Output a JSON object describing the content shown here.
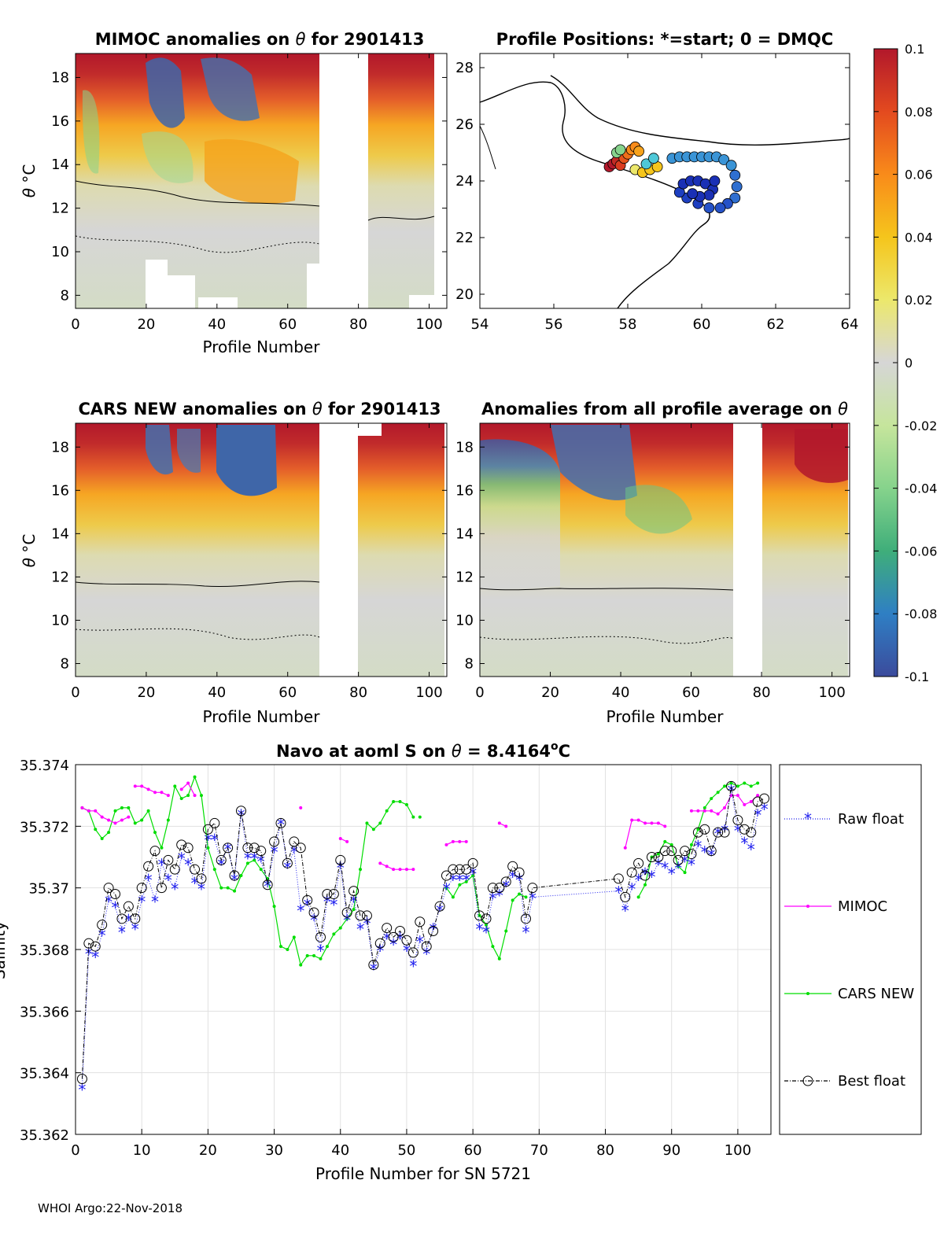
{
  "panels": {
    "mimoc": {
      "title_prefix": "MIMOC anomalies on ",
      "title_symbol": "θ",
      "title_suffix": "  for 2901413",
      "xlabel": "Profile Number",
      "ylabel_symbol": "θ",
      "ylabel_unit": " °C",
      "xticks": [
        "0",
        "20",
        "40",
        "60",
        "80",
        "100"
      ],
      "yticks": [
        "8",
        "10",
        "12",
        "14",
        "16",
        "18"
      ]
    },
    "positions": {
      "title": "Profile Positions: *=start; 0 = DMQC",
      "xticks": [
        "54",
        "56",
        "58",
        "60",
        "62",
        "64"
      ],
      "yticks": [
        "20",
        "22",
        "24",
        "26",
        "28"
      ]
    },
    "cars": {
      "title_prefix": "CARS NEW anomalies on ",
      "title_symbol": "θ",
      "title_suffix": " for 2901413",
      "xlabel": "Profile Number",
      "ylabel_symbol": "θ",
      "ylabel_unit": " °C",
      "xticks": [
        "0",
        "20",
        "40",
        "60",
        "80",
        "100"
      ],
      "yticks": [
        "8",
        "10",
        "12",
        "14",
        "16",
        "18"
      ]
    },
    "allavg": {
      "title_prefix": "Anomalies from all profile average on ",
      "title_symbol": "θ",
      "xlabel": "Profile Number",
      "xticks": [
        "0",
        "20",
        "40",
        "60",
        "80",
        "100"
      ],
      "yticks": [
        "8",
        "10",
        "12",
        "14",
        "16",
        "18"
      ]
    }
  },
  "colorbar": {
    "ticks": [
      "0.1",
      "0.08",
      "0.06",
      "0.04",
      "0.02",
      "0",
      "-0.02",
      "-0.04",
      "-0.06",
      "-0.08",
      "-0.1"
    ],
    "colors": [
      "#b2182b",
      "#e34a1f",
      "#f98b1a",
      "#f5c51c",
      "#ece86c",
      "#d6d6d6",
      "#c6e59c",
      "#86d38c",
      "#3fae7a",
      "#2f7fc4",
      "#3b4b9c"
    ]
  },
  "chart_data": [
    {
      "type": "heatmap",
      "title": "MIMOC anomalies on θ  for 2901413",
      "xlabel": "Profile Number",
      "ylabel": "θ °C",
      "xlim": [
        0,
        105
      ],
      "ylim": [
        7.4,
        19.1
      ],
      "gaps": [
        [
          69,
          83
        ]
      ]
    },
    {
      "type": "scatter",
      "title": "Profile Positions: *=start; 0 = DMQC",
      "xlim": [
        54,
        64
      ],
      "ylim": [
        19.5,
        28.5
      ]
    },
    {
      "type": "heatmap",
      "title": "CARS NEW anomalies on θ for 2901413",
      "xlabel": "Profile Number",
      "ylabel": "θ °C",
      "xlim": [
        0,
        105
      ],
      "ylim": [
        7.4,
        19.1
      ],
      "gaps": [
        [
          69,
          81
        ]
      ]
    },
    {
      "type": "heatmap",
      "title": "Anomalies from all profile average on θ",
      "xlabel": "Profile Number",
      "xlim": [
        0,
        105
      ],
      "ylim": [
        7.4,
        19.1
      ],
      "gaps": [
        [
          71,
          81
        ]
      ]
    },
    {
      "type": "line",
      "title_prefix": "Navo at aoml S on ",
      "title_symbol": "θ",
      "title_value": " = 8.4164",
      "title_unit_sup": "o",
      "title_unit": "C",
      "xlabel": "Profile Number for SN 5721",
      "ylabel": "Salinity",
      "xlim": [
        0,
        105
      ],
      "ylim": [
        35.362,
        35.374
      ],
      "xticks": [
        "0",
        "10",
        "20",
        "30",
        "40",
        "50",
        "60",
        "70",
        "80",
        "90",
        "100"
      ],
      "yticks": [
        "35.362",
        "35.364",
        "35.366",
        "35.368",
        "35.37",
        "35.372",
        "35.374"
      ],
      "grid": true,
      "legend_position": "right",
      "series": [
        {
          "name": "Raw float",
          "color": "#2222ee",
          "x": [
            1,
            2,
            3,
            4,
            5,
            6,
            7,
            8,
            9,
            10,
            11,
            12,
            13,
            14,
            15,
            16,
            17,
            18,
            19,
            20,
            21,
            22,
            23,
            24,
            25,
            26,
            27,
            28,
            29,
            30,
            31,
            32,
            33,
            34,
            35,
            36,
            37,
            38,
            39,
            40,
            41,
            42,
            43,
            44,
            45,
            46,
            47,
            48,
            49,
            50,
            51,
            52,
            53,
            54,
            55,
            56,
            57,
            58,
            59,
            60,
            61,
            62,
            63,
            64,
            65,
            66,
            67,
            68,
            69,
            82,
            83,
            84,
            85,
            86,
            87,
            88,
            89,
            90,
            91,
            92,
            93,
            94,
            95,
            96,
            97,
            98,
            99,
            100,
            101,
            102,
            103,
            104
          ],
          "y": [
            35.3635,
            35.3679,
            35.3678,
            35.3685,
            35.3696,
            35.3694,
            35.3686,
            35.369,
            35.3687,
            35.3696,
            35.3703,
            35.3696,
            35.3708,
            35.3703,
            35.37,
            35.371,
            35.3708,
            35.3702,
            35.37,
            35.3716,
            35.3716,
            35.3708,
            35.3713,
            35.3703,
            35.3724,
            35.371,
            35.371,
            35.3709,
            35.3701,
            35.3712,
            35.3721,
            35.3707,
            35.3712,
            35.3693,
            35.3695,
            35.369,
            35.368,
            35.3696,
            35.3695,
            35.3707,
            35.369,
            35.3696,
            35.3687,
            35.3689,
            35.3674,
            35.368,
            35.3684,
            35.3682,
            35.3684,
            35.368,
            35.3675,
            35.3683,
            35.3679,
            35.3687,
            35.3693,
            35.37,
            35.3703,
            35.3703,
            35.3703,
            35.3705,
            35.3687,
            35.3686,
            35.3697,
            35.3698,
            35.3701,
            35.3704,
            35.3703,
            35.3686,
            35.3697,
            35.3699,
            35.3693,
            35.37,
            35.3703,
            35.3705,
            35.3704,
            35.3708,
            35.3707,
            35.3705,
            35.3707,
            35.3709,
            35.3708,
            35.3714,
            35.3712,
            35.3711,
            35.3718,
            35.3719,
            35.3732,
            35.3719,
            35.3715,
            35.3713,
            35.3724,
            35.3726
          ]
        },
        {
          "name": "MIMOC",
          "color": "#ff00ff",
          "segments": [
            {
              "x": [
                1,
                2,
                3,
                4,
                5,
                6,
                7,
                8
              ],
              "y": [
                35.3726,
                35.3725,
                35.3725,
                35.3723,
                35.3722,
                35.3721,
                35.3722,
                35.3723
              ]
            },
            {
              "x": [
                9,
                10,
                11,
                12,
                13,
                14
              ],
              "y": [
                35.3733,
                35.3733,
                35.3732,
                35.3731,
                35.3731,
                35.373
              ]
            },
            {
              "x": [
                16,
                17,
                18
              ],
              "y": [
                35.3732,
                35.3734,
                35.373
              ]
            },
            {
              "x": [
                34
              ],
              "y": [
                35.3726
              ]
            },
            {
              "x": [
                40,
                41
              ],
              "y": [
                35.3716,
                35.3715
              ]
            },
            {
              "x": [
                46,
                47,
                48,
                49,
                50,
                51
              ],
              "y": [
                35.3708,
                35.3707,
                35.3706,
                35.3706,
                35.3706,
                35.3706
              ]
            },
            {
              "x": [
                56,
                57,
                58,
                59
              ],
              "y": [
                35.3714,
                35.3715,
                35.3715,
                35.3715
              ]
            },
            {
              "x": [
                64,
                65
              ],
              "y": [
                35.3721,
                35.372
              ]
            },
            {
              "x": [
                83,
                84,
                85,
                86,
                87,
                88,
                89
              ],
              "y": [
                35.3713,
                35.3722,
                35.3722,
                35.3721,
                35.3721,
                35.3721,
                35.372
              ]
            },
            {
              "x": [
                93,
                94,
                95,
                96,
                97,
                98,
                99,
                100,
                101,
                102,
                103
              ],
              "y": [
                35.3725,
                35.3725,
                35.3725,
                35.3725,
                35.3724,
                35.3726,
                35.373,
                35.373,
                35.3727,
                35.3728,
                35.373
              ]
            }
          ]
        },
        {
          "name": "CARS NEW",
          "color": "#00dd00",
          "segments": [
            {
              "x": [
                1,
                2,
                3,
                4,
                5,
                6,
                7,
                8,
                9,
                10,
                11,
                12,
                13,
                14,
                15,
                16,
                17,
                18,
                19,
                20,
                21,
                22,
                23,
                24,
                25,
                26,
                27,
                28,
                29,
                30,
                31,
                32,
                33,
                34,
                35,
                36,
                37,
                38,
                39,
                40,
                41,
                42,
                43,
                44,
                45,
                46,
                47,
                48,
                49,
                50,
                51
              ],
              "y": [
                35.3726,
                35.3725,
                35.3719,
                35.3716,
                35.3718,
                35.3725,
                35.3726,
                35.3726,
                35.3721,
                35.3722,
                35.3725,
                35.3718,
                35.3713,
                35.3722,
                35.3733,
                35.3729,
                35.373,
                35.3736,
                35.373,
                35.3713,
                35.3706,
                35.37,
                35.37,
                35.3699,
                35.3704,
                35.3708,
                35.3709,
                35.3706,
                35.3703,
                35.3694,
                35.3681,
                35.368,
                35.3684,
                35.3675,
                35.3678,
                35.3678,
                35.3677,
                35.3681,
                35.3685,
                35.3687,
                35.369,
                35.3693,
                35.3706,
                35.3721,
                35.3719,
                35.3721,
                35.3725,
                35.3728,
                35.3728,
                35.3727,
                35.3723
              ]
            },
            {
              "x": [
                52
              ],
              "y": [
                35.3723
              ]
            },
            {
              "x": [
                56,
                57,
                58,
                59,
                60,
                61,
                62,
                63,
                64,
                65,
                66,
                67,
                68
              ],
              "y": [
                35.37,
                35.3697,
                35.3701,
                35.3702,
                35.3704,
                35.3691,
                35.3688,
                35.3681,
                35.3677,
                35.3686,
                35.3696,
                35.3698,
                35.3697
              ]
            },
            {
              "x": [
                85,
                86,
                87,
                88,
                89,
                90,
                91,
                92,
                93,
                94,
                95,
                96,
                97,
                98,
                99,
                100,
                101,
                102,
                103
              ],
              "y": [
                35.3697,
                35.3701,
                35.371,
                35.3711,
                35.3715,
                35.3714,
                35.3707,
                35.3705,
                35.3714,
                35.3719,
                35.3726,
                35.3729,
                35.3731,
                35.3733,
                35.3734,
                35.3733,
                35.3734,
                35.3733,
                35.3734
              ]
            }
          ]
        },
        {
          "name": "Best float",
          "color": "#000000",
          "x": [
            1,
            2,
            3,
            4,
            5,
            6,
            7,
            8,
            9,
            10,
            11,
            12,
            13,
            14,
            15,
            16,
            17,
            18,
            19,
            20,
            21,
            22,
            23,
            24,
            25,
            26,
            27,
            28,
            29,
            30,
            31,
            32,
            33,
            34,
            35,
            36,
            37,
            38,
            39,
            40,
            41,
            42,
            43,
            44,
            45,
            46,
            47,
            48,
            49,
            50,
            51,
            52,
            53,
            54,
            55,
            56,
            57,
            58,
            59,
            60,
            61,
            62,
            63,
            64,
            65,
            66,
            67,
            68,
            69,
            82,
            83,
            84,
            85,
            86,
            87,
            88,
            89,
            90,
            91,
            92,
            93,
            94,
            95,
            96,
            97,
            98,
            99,
            100,
            101,
            102,
            103,
            104
          ],
          "y": [
            35.3638,
            35.3682,
            35.3681,
            35.3688,
            35.37,
            35.3698,
            35.369,
            35.3694,
            35.369,
            35.37,
            35.3707,
            35.3712,
            35.37,
            35.3709,
            35.3706,
            35.3714,
            35.3713,
            35.3706,
            35.3703,
            35.3719,
            35.3721,
            35.3709,
            35.3713,
            35.3704,
            35.3725,
            35.3713,
            35.3713,
            35.3712,
            35.3701,
            35.3715,
            35.3721,
            35.3708,
            35.3715,
            35.3713,
            35.3696,
            35.3692,
            35.3684,
            35.3698,
            35.3698,
            35.3709,
            35.3692,
            35.3699,
            35.3691,
            35.3691,
            35.3675,
            35.3682,
            35.3687,
            35.3684,
            35.3686,
            35.3683,
            35.3679,
            35.3689,
            35.3681,
            35.3686,
            35.3694,
            35.3704,
            35.3706,
            35.3706,
            35.3706,
            35.3708,
            35.3691,
            35.369,
            35.37,
            35.37,
            35.3702,
            35.3707,
            35.3705,
            35.369,
            35.37,
            35.3703,
            35.3697,
            35.3705,
            35.3708,
            35.3704,
            35.371,
            35.371,
            35.3712,
            35.3712,
            35.3709,
            35.3712,
            35.3711,
            35.3718,
            35.3719,
            35.3712,
            35.3718,
            35.3718,
            35.3733,
            35.3722,
            35.3719,
            35.3718,
            35.3728,
            35.3729
          ]
        }
      ]
    }
  ],
  "footer": "WHOI Argo:22-Nov-2018"
}
